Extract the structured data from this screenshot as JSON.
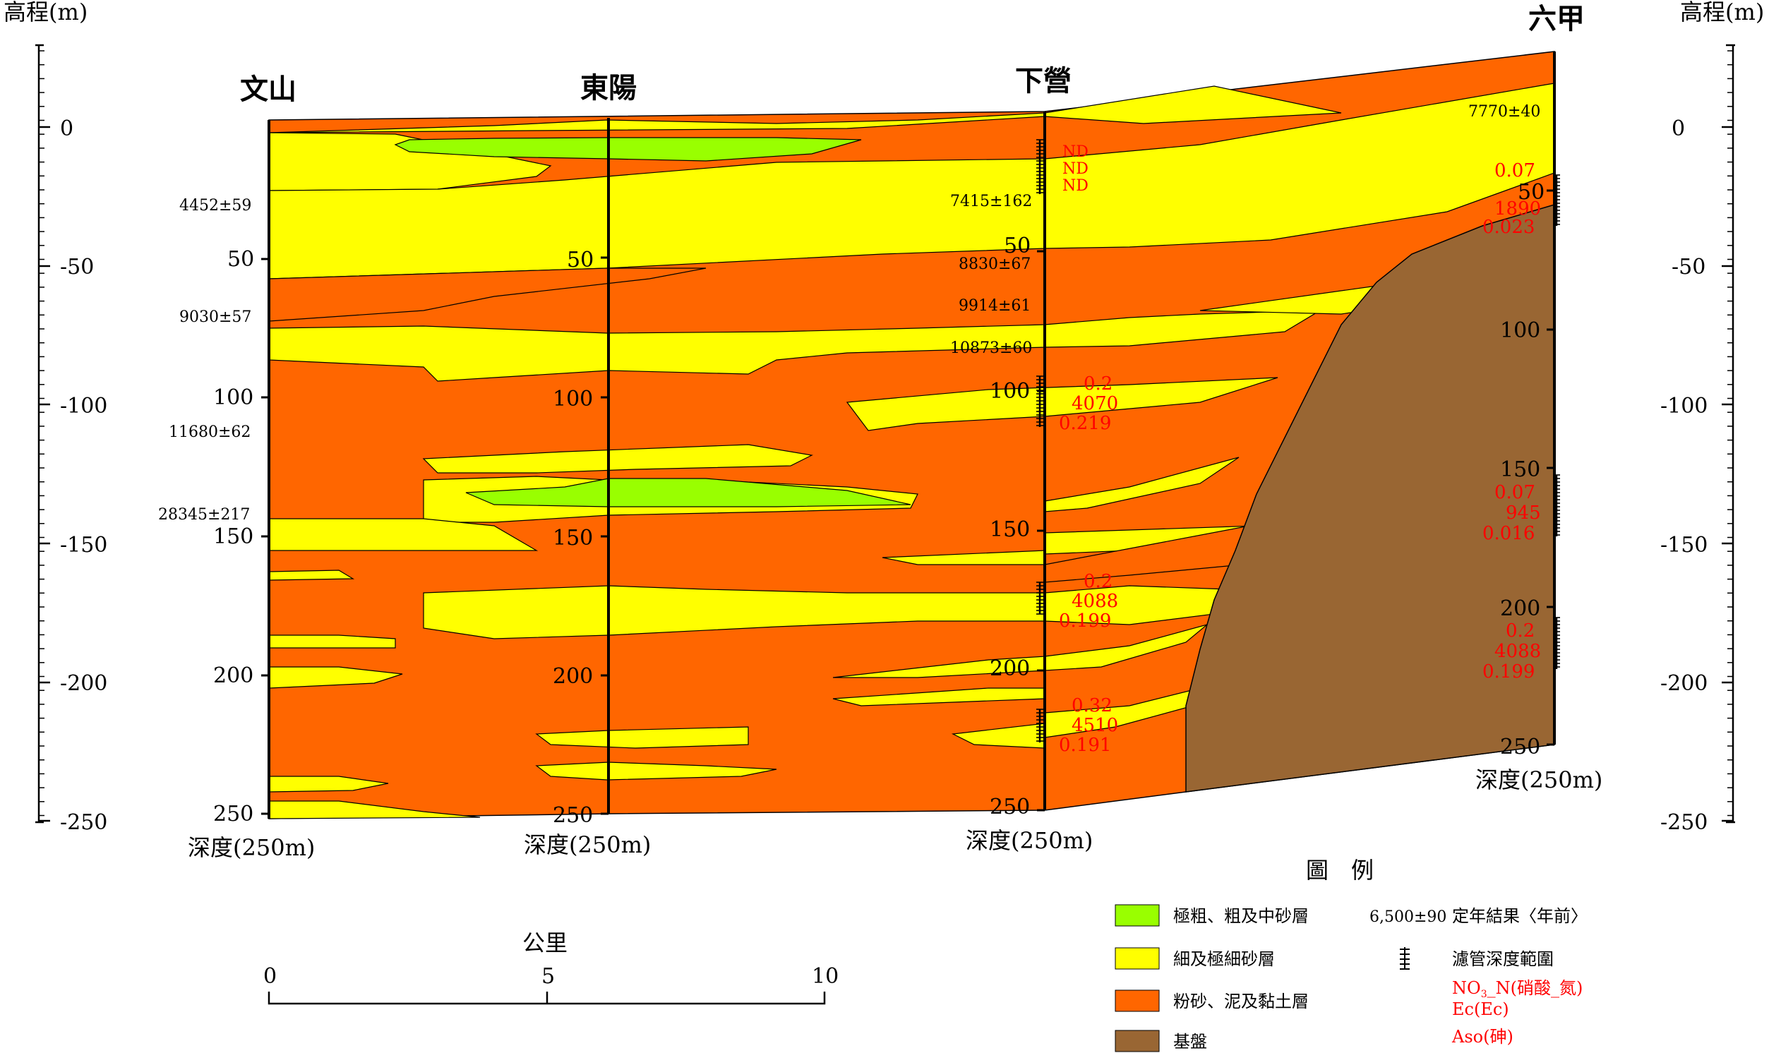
{
  "axis_label": "高程(m)",
  "elevation_ticks": [
    "0",
    "-50",
    "-100",
    "-150",
    "-200",
    "-250"
  ],
  "wells": {
    "wenshan": {
      "name": "文山",
      "depth_label": "深度(250m)",
      "depth_ticks": [
        "50",
        "100",
        "150",
        "200",
        "250"
      ],
      "ages": [
        "4452±59",
        "9030±57",
        "11680±62",
        "28345±217"
      ]
    },
    "dongyang": {
      "name": "東陽",
      "depth_label": "深度(250m)",
      "depth_ticks": [
        "50",
        "100",
        "150",
        "200",
        "250"
      ]
    },
    "xiaying": {
      "name": "下營",
      "depth_label": "深度(250m)",
      "depth_ticks": [
        "50",
        "100",
        "150",
        "200",
        "250"
      ],
      "ages": [
        "7415±162",
        "8830±67",
        "9914±61",
        "10873±60"
      ],
      "nd": [
        "ND",
        "ND",
        "ND"
      ],
      "chem": [
        {
          "no3": "0.2",
          "ec": "4070",
          "aso": "0.219"
        },
        {
          "no3": "0.2",
          "ec": "4088",
          "aso": "0.199"
        },
        {
          "no3": "0.32",
          "ec": "4510",
          "aso": "0.191"
        }
      ]
    },
    "liujia": {
      "name": "六甲",
      "depth_label": "深度(250m)",
      "depth_ticks": [
        "50",
        "100",
        "150",
        "200",
        "250"
      ],
      "ages": [
        "7770±40"
      ],
      "chem": [
        {
          "no3": "0.07",
          "ec": "1890",
          "aso": "0.023"
        },
        {
          "no3": "0.07",
          "ec": "945",
          "aso": "0.016"
        },
        {
          "no3": "0.2",
          "ec": "4088",
          "aso": "0.199"
        }
      ]
    }
  },
  "legend": {
    "title": "圖　例",
    "items": [
      {
        "label": "極粗、粗及中砂層",
        "color": "#99ff00"
      },
      {
        "label": "細及極細砂層",
        "color": "#ffff00"
      },
      {
        "label": "粉砂、泥及黏土層",
        "color": "#ff6600"
      },
      {
        "label": "基盤",
        "color": "#996633"
      }
    ],
    "age_sample": "6,500±90",
    "age_desc": "定年結果〈年前〉",
    "screen_desc": "濾管深度範圍",
    "chem_no3": "NO3_N(硝酸_氮)",
    "chem_ec": "Ec(Ec)",
    "chem_aso": "Aso(砷)",
    "chem_color": "#ff0000"
  },
  "scale_bar": {
    "title": "公里",
    "ticks": [
      "0",
      "5",
      "10"
    ]
  }
}
